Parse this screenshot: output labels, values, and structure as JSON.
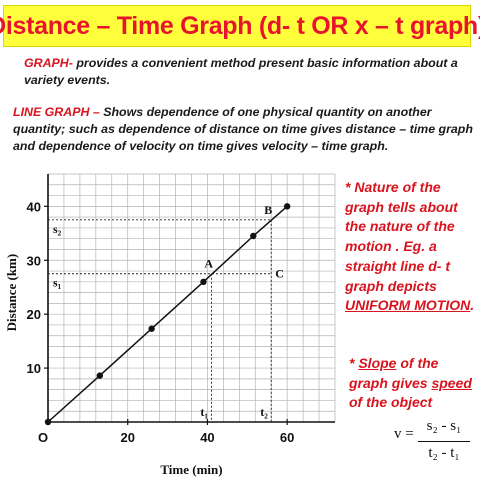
{
  "title": "Distance – Time Graph (d- t OR x – t graph)",
  "intro": {
    "graph_term": "GRAPH-",
    "graph_text": " provides a convenient method present basic information about a variety events.",
    "line_term": "LINE GRAPH –",
    "line_text": " Shows dependence of one physical quantity on another quantity; such as dependence of distance  on time gives distance – time graph and dependence of velocity on time gives velocity – time graph."
  },
  "notes": {
    "nature_a": "* Nature of the graph tells about the nature of the motion . Eg. a straight line d- t graph depicts ",
    "nature_b": "UNIFORM MOTION",
    "nature_c": ".",
    "slope_a": "* ",
    "slope_b": "Slope",
    "slope_c": " of the graph gives ",
    "slope_d": "speed",
    "slope_e": " of the object"
  },
  "formula": {
    "lhs": "v =",
    "numerator": "s₂ - s₁",
    "denominator": "t₂ - t₁"
  },
  "chart_data": {
    "type": "line",
    "xlabel": "Time (min)",
    "ylabel": "Distance (km)",
    "xlim": [
      0,
      72
    ],
    "ylim": [
      0,
      46
    ],
    "x_ticks": [
      20,
      40,
      60
    ],
    "y_ticks": [
      10,
      20,
      30,
      40
    ],
    "origin_label": "O",
    "grid": true,
    "points": [
      {
        "x": 0,
        "y": 0
      },
      {
        "x": 13,
        "y": 8.6
      },
      {
        "x": 26,
        "y": 17.3
      },
      {
        "x": 39,
        "y": 26
      },
      {
        "x": 51.5,
        "y": 34.5
      },
      {
        "x": 60,
        "y": 40
      }
    ],
    "labeled_points": [
      {
        "label": "A",
        "x": 41,
        "y": 27.5
      },
      {
        "label": "B",
        "x": 56,
        "y": 37.5
      }
    ],
    "guides": {
      "s1": {
        "label": "s₁",
        "y": 27.5
      },
      "s2": {
        "label": "s₂",
        "y": 37.5
      },
      "t1": {
        "label": "t₁",
        "x": 41
      },
      "t2": {
        "label": "t₂",
        "x": 56
      },
      "c_label": "C"
    }
  }
}
